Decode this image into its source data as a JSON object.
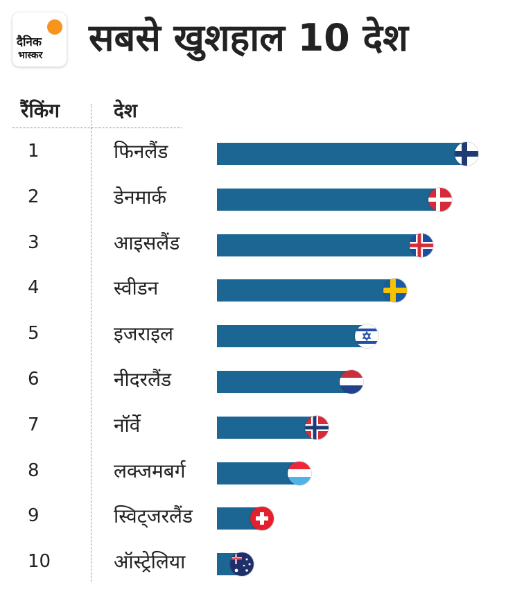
{
  "header": {
    "logo_line1": "दैनिक",
    "logo_line2": "भास्कर",
    "title": "सबसे खुशहाल 10 देश"
  },
  "columns": {
    "rank": "रैंकिंग",
    "country": "देश"
  },
  "colors": {
    "bar": "#1b6693",
    "logo_sun": "#f7941d"
  },
  "chart_data": {
    "type": "bar",
    "orientation": "horizontal",
    "title": "सबसे खुशहाल 10 देश",
    "categories": [
      "फिनलैंड",
      "डेनमार्क",
      "आइसलैंड",
      "स्वीडन",
      "इजराइल",
      "नीदरलैंड",
      "नॉर्वे",
      "लक्जमबर्ग",
      "स्विट्जरलैंड",
      "ऑस्ट्रेलिया"
    ],
    "ranks": [
      "1",
      "2",
      "3",
      "4",
      "5",
      "6",
      "7",
      "8",
      "9",
      "10"
    ],
    "flags": [
      "finland-flag",
      "denmark-flag",
      "iceland-flag",
      "sweden-flag",
      "israel-flag",
      "netherlands-flag",
      "norway-flag",
      "luxembourg-flag",
      "switzerland-flag",
      "australia-flag"
    ],
    "values": [
      100,
      89.5,
      82,
      71.5,
      60,
      54,
      40,
      33,
      18,
      10
    ],
    "xlim": [
      0,
      100
    ],
    "xlabel": "",
    "ylabel": ""
  }
}
